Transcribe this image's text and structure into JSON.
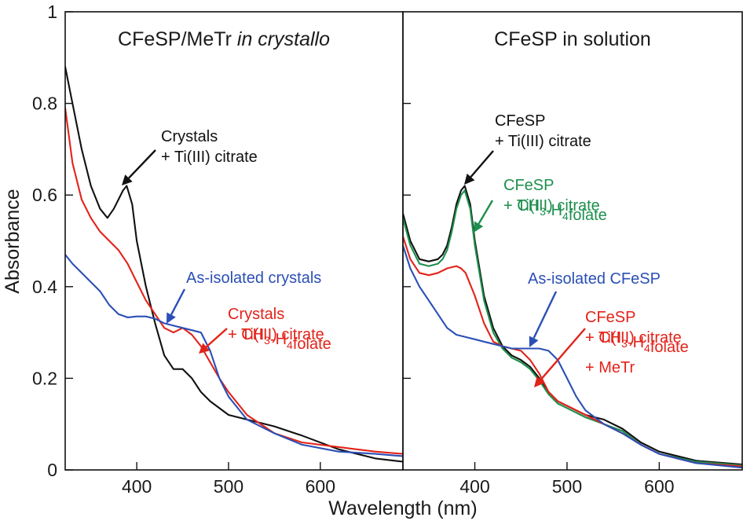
{
  "chart_data": [
    {
      "type": "line",
      "title_parts": [
        "CFeSP/MeTr ",
        "in crystallo"
      ],
      "xlabel": "Wavelength (nm)",
      "ylabel": "Absorbance",
      "xlim": [
        322,
        690
      ],
      "ylim": [
        0,
        1.0
      ],
      "x_ticks": [
        400,
        500,
        600
      ],
      "y_ticks": [
        0,
        0.2,
        0.4,
        0.6,
        0.8,
        1.0
      ],
      "y_tick_labels": [
        "0",
        "0.2",
        "0.4",
        "0.6",
        "0.8",
        "1"
      ],
      "grid": false,
      "series": [
        {
          "color": "#111111",
          "x": [
            322,
            330,
            340,
            350,
            360,
            368,
            375,
            380,
            385,
            389,
            395,
            400,
            410,
            420,
            430,
            440,
            450,
            460,
            470,
            480,
            500,
            520,
            550,
            580,
            620,
            660,
            690
          ],
          "y": [
            0.88,
            0.8,
            0.7,
            0.62,
            0.57,
            0.55,
            0.57,
            0.59,
            0.61,
            0.62,
            0.58,
            0.5,
            0.4,
            0.32,
            0.25,
            0.22,
            0.22,
            0.2,
            0.17,
            0.15,
            0.12,
            0.11,
            0.095,
            0.075,
            0.045,
            0.025,
            0.018
          ]
        },
        {
          "color": "#e2231a",
          "x": [
            322,
            330,
            340,
            350,
            360,
            370,
            380,
            390,
            400,
            410,
            420,
            430,
            440,
            450,
            460,
            470,
            480,
            490,
            500,
            520,
            550,
            580,
            620,
            660,
            690
          ],
          "y": [
            0.79,
            0.67,
            0.59,
            0.55,
            0.52,
            0.5,
            0.48,
            0.45,
            0.41,
            0.37,
            0.34,
            0.31,
            0.3,
            0.31,
            0.295,
            0.27,
            0.235,
            0.2,
            0.17,
            0.12,
            0.08,
            0.06,
            0.05,
            0.04,
            0.035
          ]
        },
        {
          "color": "#2b4fb5",
          "x": [
            322,
            330,
            340,
            350,
            360,
            370,
            380,
            390,
            400,
            410,
            420,
            430,
            440,
            450,
            460,
            470,
            480,
            490,
            500,
            520,
            550,
            580,
            620,
            660,
            690
          ],
          "y": [
            0.47,
            0.45,
            0.43,
            0.41,
            0.39,
            0.36,
            0.34,
            0.333,
            0.335,
            0.335,
            0.33,
            0.32,
            0.315,
            0.31,
            0.305,
            0.3,
            0.26,
            0.2,
            0.16,
            0.11,
            0.08,
            0.055,
            0.04,
            0.035,
            0.03
          ]
        }
      ],
      "annotations": [
        {
          "lines": [
            "Crystals",
            "+ Ti(III) citrate"
          ],
          "color": "#111111",
          "arrow_tip": [
            390,
            0.62
          ]
        },
        {
          "lines": [
            "As-isolated crystals"
          ],
          "color": "#2b4fb5",
          "arrow_tip": [
            440,
            0.315
          ]
        },
        {
          "lines": [
            "Crystals",
            "+ Ti(III) citrate",
            "+ CH3-H4folate"
          ],
          "color": "#e2231a",
          "arrow_tip": [
            465,
            0.26
          ]
        }
      ]
    },
    {
      "type": "line",
      "title": "CFeSP in solution",
      "xlabel": "Wavelength (nm)",
      "xlim": [
        322,
        690
      ],
      "ylim": [
        0,
        1.0
      ],
      "x_ticks": [
        400,
        500,
        600
      ],
      "grid": false,
      "series": [
        {
          "color": "#111111",
          "x": [
            322,
            330,
            340,
            350,
            360,
            365,
            370,
            375,
            380,
            385,
            389,
            395,
            400,
            410,
            420,
            430,
            440,
            450,
            460,
            470,
            480,
            490,
            500,
            520,
            540,
            560,
            580,
            600,
            640,
            690
          ],
          "y": [
            0.56,
            0.5,
            0.46,
            0.455,
            0.46,
            0.47,
            0.49,
            0.53,
            0.58,
            0.61,
            0.62,
            0.58,
            0.5,
            0.38,
            0.31,
            0.27,
            0.25,
            0.24,
            0.225,
            0.2,
            0.17,
            0.15,
            0.14,
            0.12,
            0.11,
            0.09,
            0.06,
            0.04,
            0.02,
            0.012
          ]
        },
        {
          "color": "#1e8f4e",
          "x": [
            322,
            330,
            340,
            350,
            360,
            365,
            370,
            375,
            380,
            385,
            389,
            395,
            400,
            410,
            420,
            430,
            440,
            450,
            460,
            470,
            480,
            490,
            500,
            520,
            540,
            560,
            580,
            600,
            640,
            690
          ],
          "y": [
            0.55,
            0.49,
            0.45,
            0.445,
            0.45,
            0.46,
            0.48,
            0.52,
            0.57,
            0.6,
            0.61,
            0.57,
            0.49,
            0.37,
            0.3,
            0.265,
            0.245,
            0.235,
            0.22,
            0.195,
            0.165,
            0.145,
            0.135,
            0.115,
            0.1,
            0.085,
            0.055,
            0.035,
            0.018,
            0.01
          ]
        },
        {
          "color": "#e2231a",
          "x": [
            322,
            330,
            340,
            350,
            360,
            370,
            380,
            385,
            390,
            400,
            410,
            420,
            430,
            440,
            450,
            460,
            470,
            480,
            490,
            500,
            520,
            540,
            560,
            580,
            600,
            640,
            690
          ],
          "y": [
            0.51,
            0.46,
            0.43,
            0.425,
            0.43,
            0.44,
            0.445,
            0.44,
            0.43,
            0.38,
            0.32,
            0.28,
            0.27,
            0.265,
            0.26,
            0.24,
            0.21,
            0.17,
            0.15,
            0.14,
            0.12,
            0.1,
            0.08,
            0.055,
            0.035,
            0.015,
            0.008
          ]
        },
        {
          "color": "#2b4fb5",
          "x": [
            322,
            330,
            340,
            350,
            360,
            370,
            380,
            390,
            400,
            410,
            420,
            430,
            440,
            450,
            460,
            470,
            480,
            490,
            500,
            510,
            520,
            540,
            560,
            580,
            600,
            640,
            690
          ],
          "y": [
            0.49,
            0.44,
            0.4,
            0.37,
            0.34,
            0.31,
            0.295,
            0.29,
            0.285,
            0.28,
            0.275,
            0.27,
            0.265,
            0.265,
            0.265,
            0.265,
            0.26,
            0.24,
            0.2,
            0.16,
            0.13,
            0.1,
            0.08,
            0.055,
            0.035,
            0.015,
            0.005
          ]
        }
      ],
      "annotations": [
        {
          "lines": [
            "CFeSP",
            "+ Ti(III) citrate"
          ],
          "color": "#111111",
          "arrow_tip": [
            390,
            0.62
          ]
        },
        {
          "lines": [
            "CFeSP",
            "+ Ti(III) citrate",
            "+ CH3-H4folate"
          ],
          "color": "#1e8f4e",
          "arrow_tip": [
            393,
            0.57
          ]
        },
        {
          "lines": [
            "As-isolated CFeSP"
          ],
          "color": "#2b4fb5",
          "arrow_tip": [
            460,
            0.265
          ]
        },
        {
          "lines": [
            "CFeSP",
            "+ Ti(III) citrate",
            "+ CH3-H4folate",
            "+ MeTr"
          ],
          "color": "#e2231a",
          "arrow_tip": [
            462,
            0.24
          ]
        }
      ]
    }
  ]
}
